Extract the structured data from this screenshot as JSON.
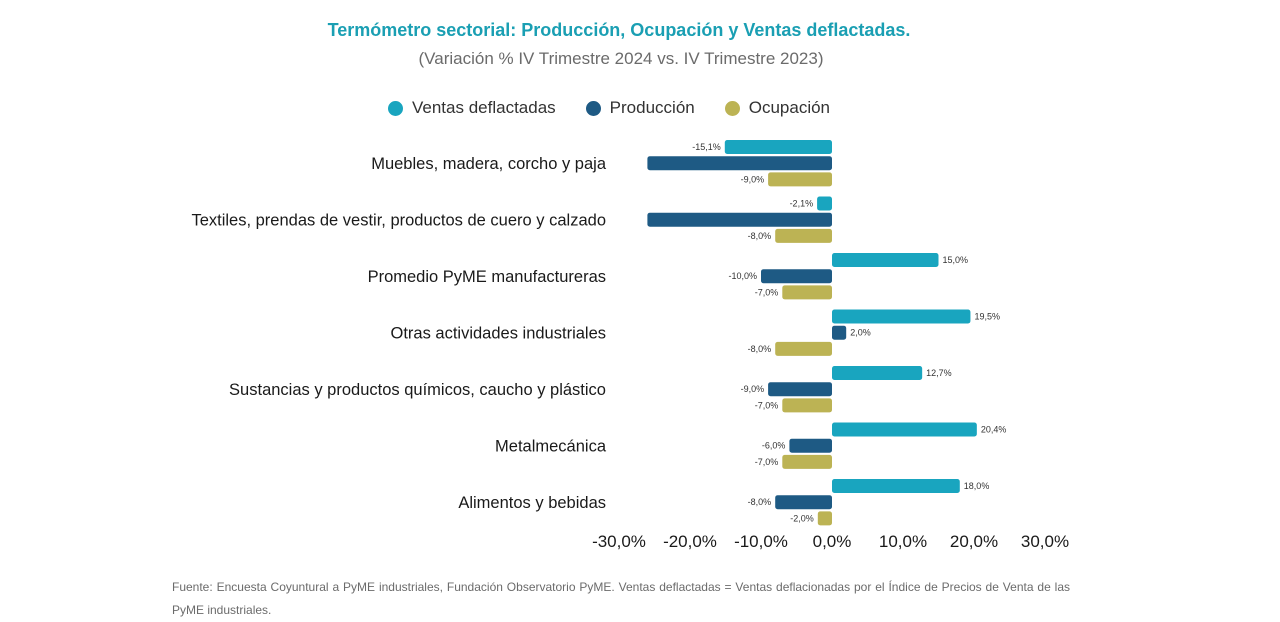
{
  "chart_data": {
    "type": "bar",
    "orientation": "horizontal",
    "title": "Termómetro sectorial: Producción, Ocupación y Ventas deflactadas.",
    "subtitle": "(Variación % IV Trimestre 2024 vs. IV Trimestre 2023)",
    "categories": [
      "Muebles, madera, corcho y paja",
      "Textiles, prendas de vestir, productos de cuero y calzado",
      "Promedio PyME manufactureras",
      "Otras actividades industriales",
      "Sustancias y productos químicos, caucho y plástico",
      "Metalmecánica",
      "Alimentos y bebidas"
    ],
    "series": [
      {
        "name": "Ventas deflactadas",
        "color": "#19a5bf",
        "values": [
          -15.1,
          -2.1,
          15.0,
          19.5,
          12.7,
          20.4,
          18.0
        ],
        "labels": [
          "-15,1%",
          "-2,1%",
          "15,0%",
          "19,5%",
          "12,7%",
          "20,4%",
          "18,0%"
        ]
      },
      {
        "name": "Producción",
        "color": "#1e5a84",
        "values": [
          -26.0,
          -26.0,
          -10.0,
          2.0,
          -9.0,
          -6.0,
          -8.0
        ],
        "labels": [
          "",
          "",
          "-10,0%",
          "2,0%",
          "-9,0%",
          "-6,0%",
          "-8,0%"
        ]
      },
      {
        "name": "Ocupación",
        "color": "#bcb354",
        "values": [
          -9.0,
          -8.0,
          -7.0,
          -8.0,
          -7.0,
          -7.0,
          -2.0
        ],
        "labels": [
          "-9,0%",
          "-8,0%",
          "-7,0%",
          "-8,0%",
          "-7,0%",
          "-7,0%",
          "-2,0%"
        ]
      }
    ],
    "xlim": [
      -30,
      30
    ],
    "xticks": [
      -30,
      -20,
      -10,
      0,
      10,
      20,
      30
    ],
    "xtick_labels": [
      "-30,0%",
      "-20,0%",
      "-10,0%",
      "0,0%",
      "10,0%",
      "20,0%",
      "30,0%"
    ],
    "grid": false,
    "legend": "top"
  },
  "source": "Fuente: Encuesta Coyuntural a PyME industriales, Fundación Observatorio PyME. Ventas deflactadas = Ventas deflacionadas por el Índice de Precios de Venta de las PyME industriales."
}
